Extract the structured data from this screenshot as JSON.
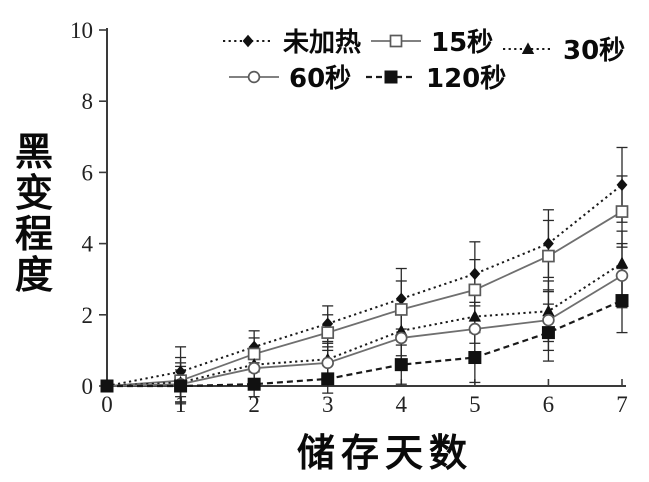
{
  "page": {
    "background": "#ffffff"
  },
  "chart_data": {
    "type": "line",
    "title": "",
    "xlabel": "储存天数",
    "ylabel": "黑变程度",
    "x": [
      0,
      1,
      2,
      3,
      4,
      5,
      6,
      7
    ],
    "xlim": [
      0,
      7
    ],
    "ylim": [
      0,
      10
    ],
    "yticks": [
      0,
      2,
      4,
      6,
      8,
      10
    ],
    "grid": false,
    "legend_position": "top-inside",
    "error_bars": true,
    "colors": {
      "dotted_line": "#1a1a1a",
      "solid_line": "#6f6f6f",
      "marker_fill": "#111111",
      "marker_open_stroke": "#5a5a5a",
      "axis": "#3a3a3a",
      "tick_text": "#222222",
      "label_text": "#0a0a0a"
    },
    "series": [
      {
        "name": "未加热",
        "marker": "diamond-filled",
        "line": "dotted",
        "values": [
          0,
          0.4,
          1.1,
          1.75,
          2.45,
          3.15,
          4.0,
          5.65
        ],
        "errors": [
          0,
          0.7,
          0.45,
          0.5,
          0.85,
          0.9,
          0.95,
          1.05
        ]
      },
      {
        "name": "15秒",
        "marker": "square-open",
        "line": "solid",
        "values": [
          0,
          0.15,
          0.9,
          1.5,
          2.15,
          2.7,
          3.65,
          4.9
        ],
        "errors": [
          0,
          0.65,
          0.45,
          0.5,
          0.8,
          0.85,
          1.0,
          1.0
        ]
      },
      {
        "name": "30秒",
        "marker": "triangle-filled",
        "line": "dotted",
        "values": [
          0,
          0.1,
          0.6,
          0.75,
          1.55,
          1.95,
          2.1,
          3.45
        ],
        "errors": [
          0,
          0.55,
          0.4,
          0.45,
          0.7,
          0.75,
          0.85,
          0.9
        ]
      },
      {
        "name": "60秒",
        "marker": "circle-open",
        "line": "solid",
        "values": [
          0,
          0.05,
          0.5,
          0.65,
          1.35,
          1.6,
          1.85,
          3.1
        ],
        "errors": [
          0,
          0.5,
          0.4,
          0.45,
          0.7,
          0.75,
          0.85,
          0.9
        ]
      },
      {
        "name": "120秒",
        "marker": "square-filled",
        "line": "dash-dot",
        "values": [
          0,
          0,
          0.05,
          0.2,
          0.6,
          0.8,
          1.5,
          2.4
        ],
        "errors": [
          0,
          0.45,
          0.35,
          0.4,
          0.55,
          0.7,
          0.8,
          0.9
        ]
      }
    ]
  }
}
